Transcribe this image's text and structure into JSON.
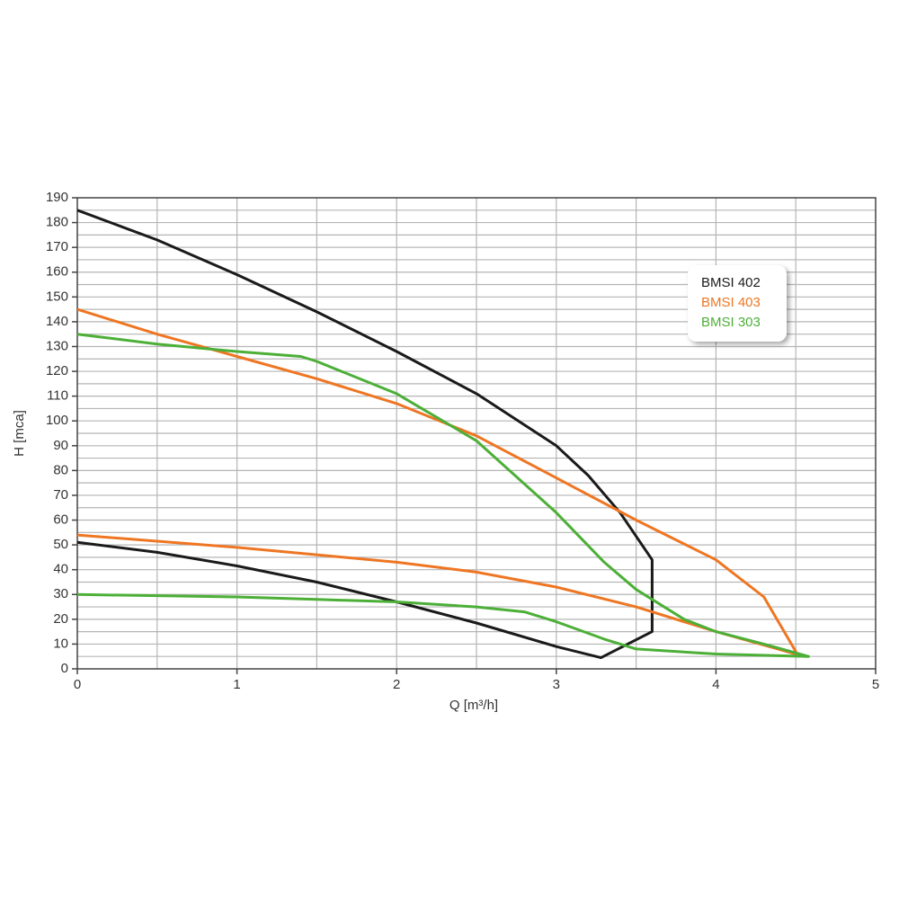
{
  "chart_data": {
    "type": "line",
    "xlabel": "Q [m³/h]",
    "ylabel": "H [mca]",
    "xlim": [
      0,
      5
    ],
    "ylim": [
      0,
      190
    ],
    "xticks": [
      0,
      1,
      2,
      3,
      4,
      5
    ],
    "yticks": [
      0,
      10,
      20,
      30,
      40,
      50,
      60,
      70,
      80,
      90,
      100,
      110,
      120,
      130,
      140,
      150,
      160,
      170,
      180,
      190
    ],
    "xgrid": [
      0.5,
      1,
      1.5,
      2,
      2.5,
      3,
      3.5,
      4,
      4.5
    ],
    "ygrid": [
      5,
      10,
      15,
      20,
      25,
      30,
      35,
      40,
      45,
      50,
      55,
      60,
      65,
      70,
      75,
      80,
      85,
      90,
      95,
      100,
      105,
      110,
      115,
      120,
      125,
      130,
      135,
      140,
      145,
      150,
      155,
      160,
      165,
      170,
      175,
      180,
      185
    ],
    "grid": true,
    "legend": "upper right",
    "series": [
      {
        "name": "BMSI 402",
        "color": "#1a1a1a",
        "x": [
          0,
          0.5,
          1,
          1.5,
          2,
          2.5,
          3,
          3.2,
          3.4,
          3.6,
          3.6,
          3.28,
          3,
          2.5,
          2,
          1.5,
          1,
          0.5,
          0
        ],
        "values": [
          185,
          173,
          159,
          144,
          128,
          111,
          90,
          78,
          63,
          44,
          15,
          4.5,
          9,
          18.5,
          27,
          35,
          41.5,
          47,
          51
        ]
      },
      {
        "name": "BMSI 403",
        "color": "#ee7623",
        "x": [
          0,
          0.5,
          1,
          1.5,
          2,
          2.5,
          3,
          3.5,
          4,
          4.3,
          4.5,
          4.5,
          4,
          3.5,
          3,
          2.5,
          2,
          1.5,
          1,
          0.5,
          0
        ],
        "values": [
          145,
          135,
          126,
          117,
          107,
          94,
          77,
          60,
          44,
          29,
          7,
          6,
          15,
          25,
          33,
          39,
          43,
          46,
          49,
          51.5,
          54
        ]
      },
      {
        "name": "BMSI 303",
        "color": "#4caf37",
        "x": [
          0,
          0.5,
          1,
          1.4,
          1.5,
          2,
          2.5,
          3,
          3.3,
          3.5,
          3.8,
          4,
          4.3,
          4.58,
          4,
          3.5,
          3.3,
          3,
          2.8,
          2.5,
          2,
          1.5,
          1,
          0
        ],
        "values": [
          135,
          131,
          128,
          126,
          124,
          111,
          92,
          63,
          43,
          32,
          20,
          15,
          10,
          5,
          6,
          8,
          12,
          19,
          23,
          25,
          27,
          28,
          29,
          30
        ]
      }
    ]
  }
}
